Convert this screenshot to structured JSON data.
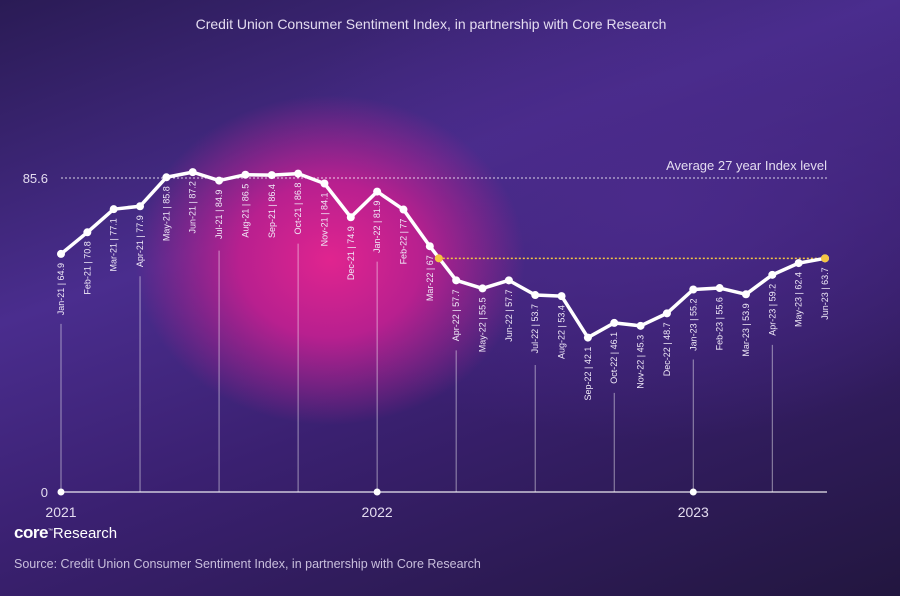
{
  "chart_data": {
    "type": "line",
    "title": "Credit Union Consumer Sentiment Index, in partnership with Core Research",
    "categories": [
      "Jan-21",
      "Feb-21",
      "Mar-21",
      "Apr-21",
      "May-21",
      "Jun-21",
      "Jul-21",
      "Aug-21",
      "Sep-21",
      "Oct-21",
      "Nov-21",
      "Dec-21",
      "Jan-22",
      "Feb-22",
      "Mar-22",
      "Apr-22",
      "May-22",
      "Jun-22",
      "Jul-22",
      "Aug-22",
      "Sep-22",
      "Oct-22",
      "Nov-22",
      "Dec-22",
      "Jan-23",
      "Feb-23",
      "Mar-23",
      "Apr-23",
      "May-23",
      "Jun-23"
    ],
    "values": [
      64.9,
      70.8,
      77.1,
      77.9,
      85.8,
      87.2,
      84.9,
      86.5,
      86.4,
      86.8,
      84.1,
      74.9,
      81.9,
      77,
      67,
      57.7,
      55.5,
      57.7,
      53.7,
      53.4,
      42.1,
      46.1,
      45.3,
      48.7,
      55.2,
      55.6,
      53.9,
      59.2,
      62.4,
      63.7
    ],
    "point_labels": [
      "Jan-21 | 64.9",
      "Feb-21 | 70.8",
      "Mar-21 | 77.1",
      "Apr-21 | 77.9",
      "May-21 | 85.8",
      "Jun-21 | 87.2",
      "Jul-21 | 84.9",
      "Aug-21 | 86.5",
      "Sep-21 | 86.4",
      "Oct-21 | 86.8",
      "Nov-21 | 84.1",
      "Dec-21 | 74.9",
      "Jan-22 | 81.9",
      "Feb-22 | 77",
      "Mar-22 | 67",
      "Apr-22 | 57.7",
      "May-22 | 55.5",
      "Jun-22 | 57.7",
      "Jul-22 | 53.7",
      "Aug-22 | 53.4",
      "Sep-22 | 42.1",
      "Oct-22 | 46.1",
      "Nov-22 | 45.3",
      "Dec-22 | 48.7",
      "Jan-23 | 55.2",
      "Feb-23 | 55.6",
      "Mar-23 | 53.9",
      "Apr-23 | 59.2",
      "May-23 | 62.4",
      "Jun-23 | 63.7"
    ],
    "ylim": [
      0,
      85.6
    ],
    "yticks": [
      "0",
      "85.6"
    ],
    "year_labels": [
      "2021",
      "2022",
      "2023"
    ],
    "reference_line": {
      "value": 85.6,
      "label": "Average 27 year Index level"
    },
    "highlight_line": {
      "from": "Mar-22",
      "to": "Jun-23",
      "value": 63.7,
      "color": "#f5c542"
    },
    "line_color": "#ffffff"
  },
  "logo": {
    "brand": "core",
    "suffix": "Research"
  },
  "source": "Source: Credit Union Consumer Sentiment Index, in partnership with Core Research"
}
